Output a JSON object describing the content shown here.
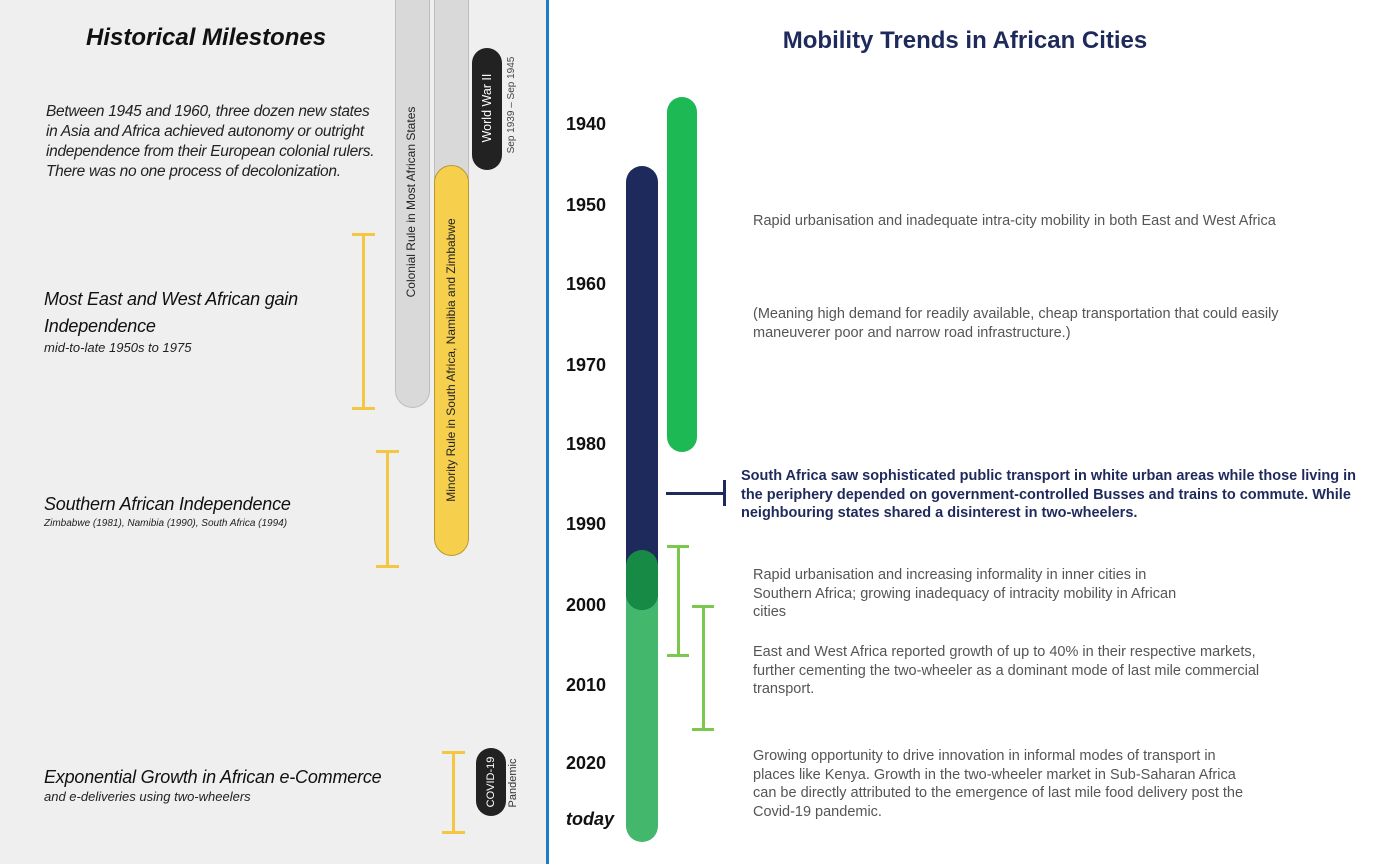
{
  "left": {
    "title": "Historical Milestones",
    "intro": "Between 1945 and 1960, three dozen new states in Asia and Africa achieved autonomy or outright independence from their European colonial rulers. There was no one process of decolonization.",
    "milestones": [
      {
        "title_line1": "Most East and West African gain",
        "title_line2": "Independence",
        "subtitle": "mid-to-late 1950s to 1975"
      },
      {
        "title_line1": "Southern African Independence",
        "subtitle": "Zimbabwe (1981), Namibia (1990), South Africa (1994)"
      },
      {
        "title_line1": "Exponential Growth in African e-Commerce",
        "subtitle": "and e-deliveries using two-wheelers"
      }
    ],
    "bars": {
      "colonial": "Colonial Rule in Most African States",
      "minority": "Minority Rule in South Africa, Namibia and Zimbabwe",
      "ww2": "World War II",
      "ww2_dates": "Sep 1939 – Sep 1945",
      "covid": "COVID-19",
      "covid_sub": "Pandemic"
    },
    "colors": {
      "bracket": "#f3c744",
      "minority_bar": "#f6d04d",
      "colonial_bar": "#d9d9d9",
      "dark_pill": "#222222"
    }
  },
  "right": {
    "title": "Mobility Trends in African Cities",
    "years": [
      "1940",
      "1950",
      "1960",
      "1970",
      "1980",
      "1990",
      "2000",
      "2010",
      "2020",
      "today"
    ],
    "descriptions": {
      "d1": "Rapid urbanisation and inadequate intra-city mobility in both East and West Africa",
      "d2": "(Meaning high demand for readily available, cheap transportation that could easily maneuverer poor and narrow road infrastructure.)",
      "d3": "South Africa saw sophisticated public transport in white urban areas while those living in the periphery depended on government-controlled Busses and trains to commute. While neighbouring states shared a disinterest in two-wheelers.",
      "d4": "Rapid urbanisation and increasing informality in inner cities in Southern Africa; growing inadequacy of intracity mobility in African cities",
      "d5": "East and West Africa reported growth of up to 40% in their respective markets, further cementing the two-wheeler as a dominant mode of last mile commercial transport.",
      "d6": "Growing opportunity to drive innovation in informal modes of transport in places like Kenya. Growth in the two-wheeler market in Sub-Saharan Africa can be directly attributed to the emergence of last mile food delivery post the Covid-19 pandemic."
    },
    "colors": {
      "navy_bar": "#1f2a5c",
      "green_bar": "#1db954",
      "light_green_bar": "#43b86d",
      "accent_blue": "#1d7dc4"
    }
  }
}
